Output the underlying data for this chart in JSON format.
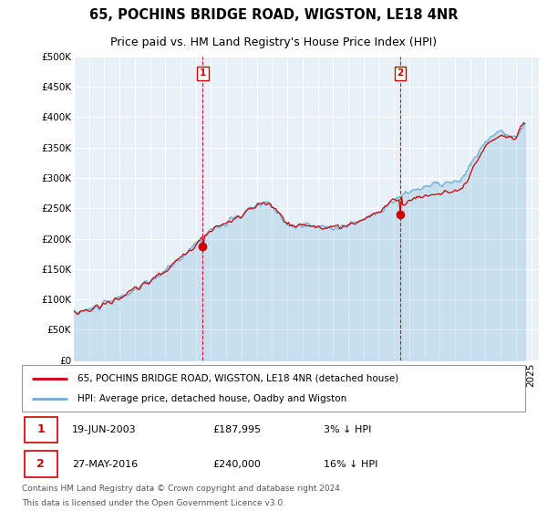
{
  "title": "65, POCHINS BRIDGE ROAD, WIGSTON, LE18 4NR",
  "subtitle": "Price paid vs. HM Land Registry's House Price Index (HPI)",
  "ylabel_ticks": [
    "£0",
    "£50K",
    "£100K",
    "£150K",
    "£200K",
    "£250K",
    "£300K",
    "£350K",
    "£400K",
    "£450K",
    "£500K"
  ],
  "ylim": [
    0,
    500000
  ],
  "xlim_start": 1995.0,
  "xlim_end": 2025.5,
  "sale1_date": 2003.46,
  "sale1_price": 187995,
  "sale1_label": "1",
  "sale2_date": 2016.41,
  "sale2_price": 240000,
  "sale2_label": "2",
  "legend_line1": "65, POCHINS BRIDGE ROAD, WIGSTON, LE18 4NR (detached house)",
  "legend_line2": "HPI: Average price, detached house, Oadby and Wigston",
  "footer1": "Contains HM Land Registry data © Crown copyright and database right 2024.",
  "footer2": "This data is licensed under the Open Government Licence v3.0.",
  "hpi_color": "#6baed6",
  "price_color": "#cc0000",
  "sale_marker_color": "#cc0000",
  "vline_color": "#cc0000",
  "background_color": "#ffffff",
  "plot_bg_color": "#e8f0f8",
  "grid_color": "#ffffff",
  "title_fontsize": 10.5,
  "subtitle_fontsize": 9,
  "tick_fontsize": 7.5
}
